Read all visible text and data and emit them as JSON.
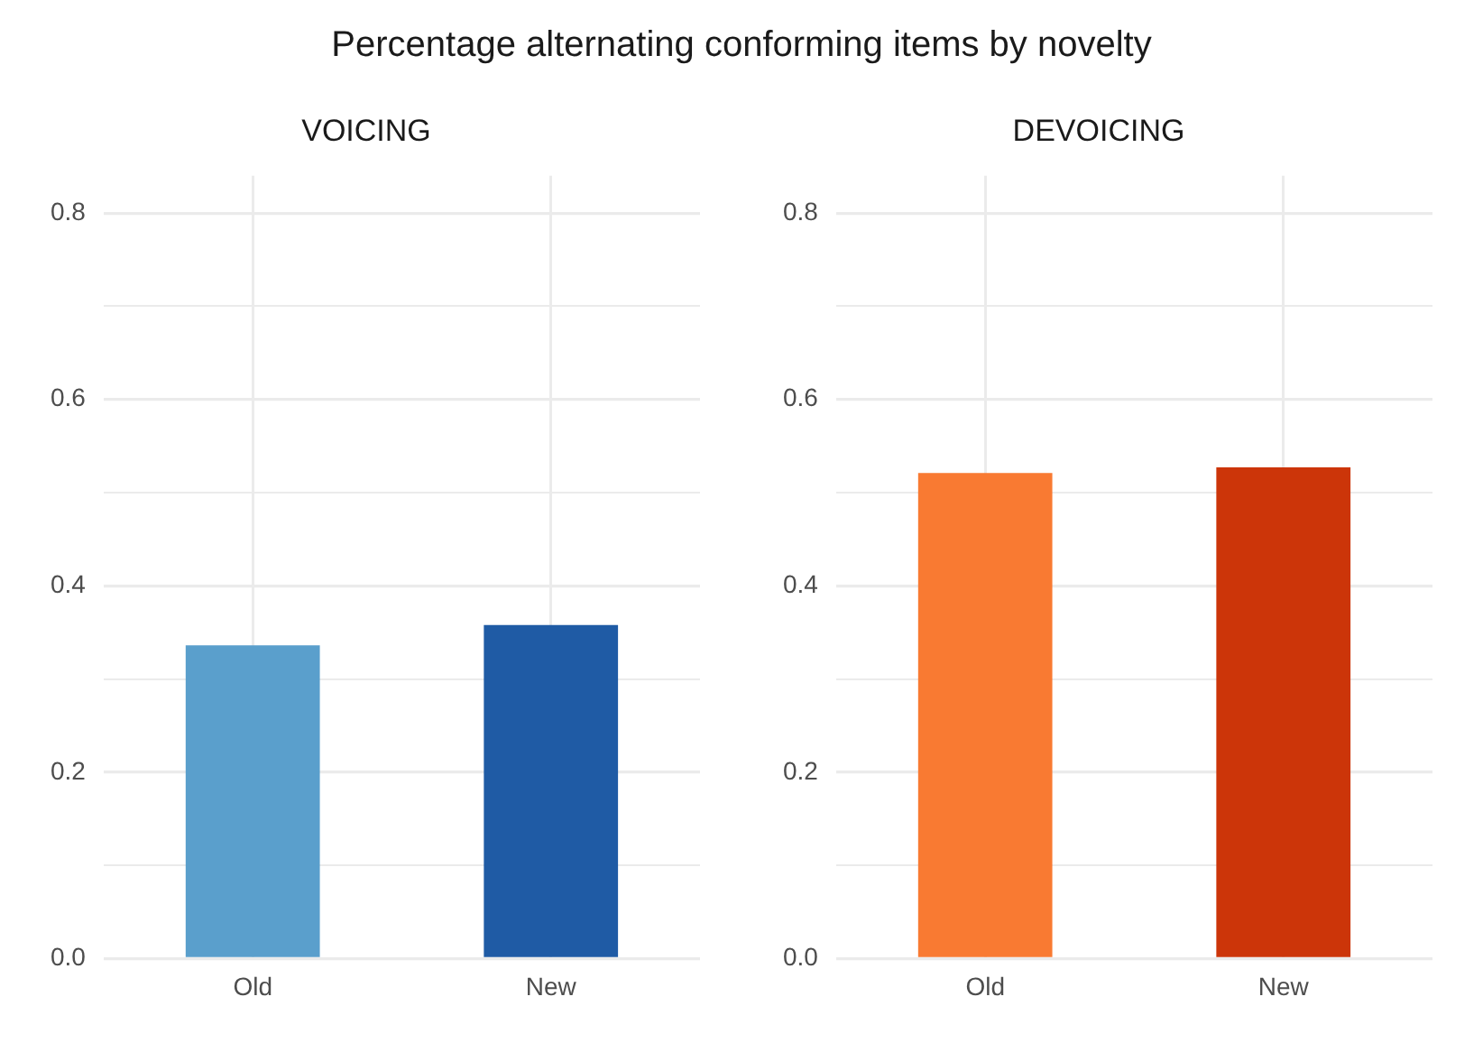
{
  "chart_data": [
    {
      "type": "bar",
      "title": "Percentage alternating conforming items by novelty",
      "subtitle": "VOICING",
      "categories": [
        "Old",
        "New"
      ],
      "values": [
        0.336,
        0.358
      ],
      "colors": [
        "#5a9fcc",
        "#1f5ba5"
      ],
      "ylim": [
        0,
        0.84
      ],
      "yticks": [
        {
          "value": 0,
          "label": "0.0"
        },
        {
          "value": 0.1,
          "label": null
        },
        {
          "value": 0.2,
          "label": "0.2"
        },
        {
          "value": 0.3,
          "label": null
        },
        {
          "value": 0.4,
          "label": "0.4"
        },
        {
          "value": 0.5,
          "label": null
        },
        {
          "value": 0.6,
          "label": "0.6"
        },
        {
          "value": 0.7,
          "label": null
        },
        {
          "value": 0.8,
          "label": "0.8"
        }
      ],
      "grid": true
    },
    {
      "type": "bar",
      "subtitle": "DEVOICING",
      "categories": [
        "Old",
        "New"
      ],
      "values": [
        0.521,
        0.527
      ],
      "colors": [
        "#f97a32",
        "#cc3509"
      ],
      "ylim": [
        0,
        0.84
      ],
      "yticks": [
        {
          "value": 0,
          "label": "0.0"
        },
        {
          "value": 0.1,
          "label": null
        },
        {
          "value": 0.2,
          "label": "0.2"
        },
        {
          "value": 0.3,
          "label": null
        },
        {
          "value": 0.4,
          "label": "0.4"
        },
        {
          "value": 0.5,
          "label": null
        },
        {
          "value": 0.6,
          "label": "0.6"
        },
        {
          "value": 0.7,
          "label": null
        },
        {
          "value": 0.8,
          "label": "0.8"
        }
      ],
      "grid": true
    }
  ]
}
